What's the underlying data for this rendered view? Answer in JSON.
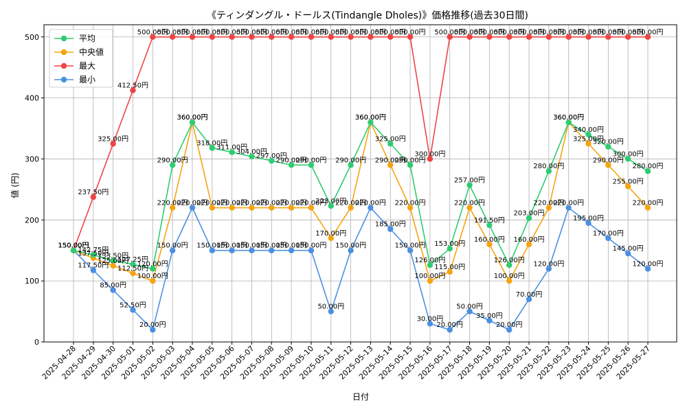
{
  "chart_data": {
    "type": "line",
    "title": "《ティンダングル・ドールス(Tindangle Dholes)》価格推移(過去30日間)",
    "xlabel": "日付",
    "ylabel": "値 (円)",
    "ylim": [
      0,
      520
    ],
    "yticks": [
      0,
      100,
      200,
      300,
      400,
      500
    ],
    "grid": true,
    "legend_position": "top-left",
    "label_suffix": "円",
    "categories": [
      "2025-04-28",
      "2025-04-29",
      "2025-04-30",
      "2025-05-01",
      "2025-05-02",
      "2025-05-03",
      "2025-05-04",
      "2025-05-05",
      "2025-05-06",
      "2025-05-07",
      "2025-05-08",
      "2025-05-09",
      "2025-05-10",
      "2025-05-11",
      "2025-05-12",
      "2025-05-13",
      "2025-05-14",
      "2025-05-15",
      "2025-05-16",
      "2025-05-17",
      "2025-05-18",
      "2025-05-19",
      "2025-05-20",
      "2025-05-21",
      "2025-05-22",
      "2025-05-23",
      "2025-05-24",
      "2025-05-25",
      "2025-05-26",
      "2025-05-27"
    ],
    "series": [
      {
        "name": "平均",
        "color": "#2ecc71",
        "values": [
          150,
          142.75,
          133.5,
          127.25,
          120,
          290,
          360,
          318,
          311,
          304,
          297,
          290,
          290,
          223,
          290,
          360,
          325,
          290,
          126,
          153,
          257,
          191.5,
          126,
          203,
          280,
          360,
          340,
          320,
          300,
          280
        ]
      },
      {
        "name": "中央値",
        "color": "#f5a40f",
        "values": [
          150,
          137.5,
          125,
          112.5,
          100,
          220,
          360,
          220,
          220,
          220,
          220,
          220,
          220,
          170,
          220,
          360,
          290,
          220,
          100,
          115,
          220,
          160,
          100,
          160,
          220,
          360,
          325,
          290,
          255,
          220
        ]
      },
      {
        "name": "最大",
        "color": "#ef4444",
        "values": [
          150,
          237.5,
          325,
          412.5,
          500,
          500,
          500,
          500,
          500,
          500,
          500,
          500,
          500,
          500,
          500,
          500,
          500,
          500,
          300,
          500,
          500,
          500,
          500,
          500,
          500,
          500,
          500,
          500,
          500,
          500
        ]
      },
      {
        "name": "最小",
        "color": "#4a90e2",
        "values": [
          150,
          117.5,
          85,
          52.5,
          20,
          150,
          220,
          150,
          150,
          150,
          150,
          150,
          150,
          50,
          150,
          220,
          185,
          150,
          30,
          20,
          50,
          35,
          20,
          70,
          120,
          220,
          195,
          170,
          145,
          120
        ]
      }
    ]
  }
}
